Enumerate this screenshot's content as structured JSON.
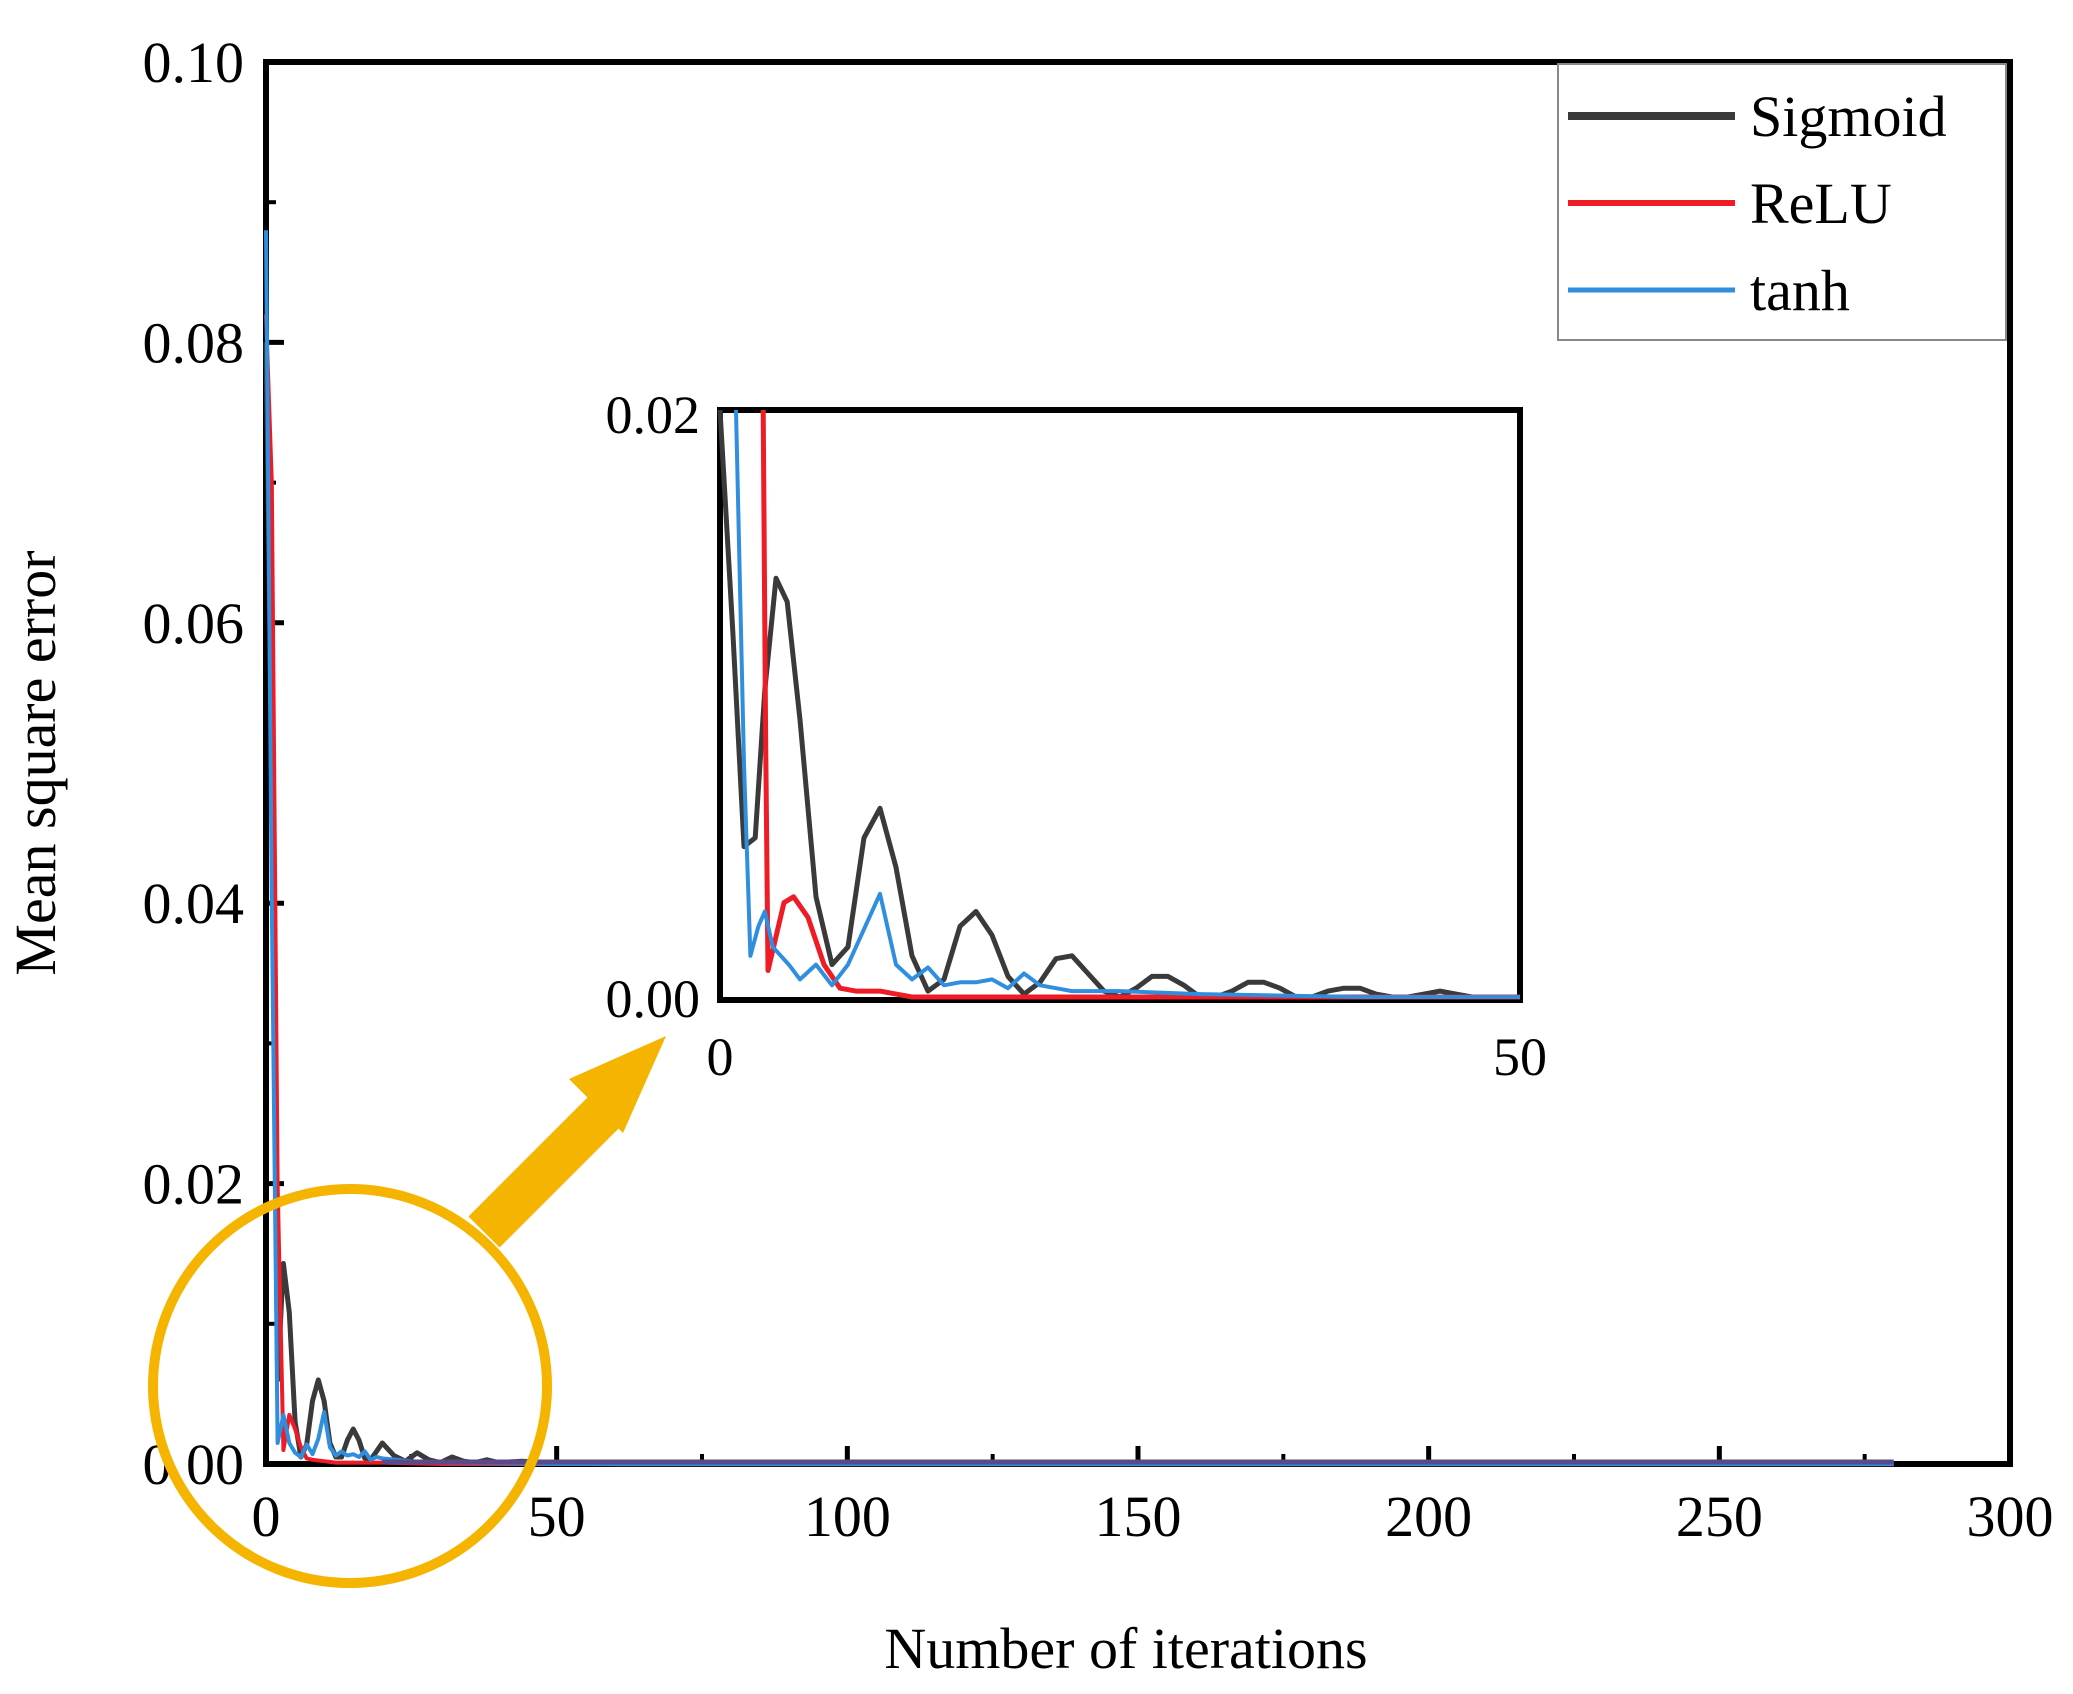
{
  "chart_data": [
    {
      "type": "line",
      "title": "",
      "xlabel": "Number of iterations",
      "ylabel": "Mean square error",
      "xlim": [
        0,
        300
      ],
      "ylim": [
        0,
        0.1
      ],
      "xticks": [
        "0",
        "50",
        "100",
        "150",
        "200",
        "250",
        "300"
      ],
      "yticks": [
        "0.00",
        "0.02",
        "0.04",
        "0.06",
        "0.08",
        "0.10"
      ],
      "legend": {
        "placement": "top-right",
        "entries": [
          "Sigmoid",
          "ReLU",
          "tanh"
        ]
      },
      "series": [
        {
          "name": "Sigmoid",
          "color": "#3a3a3a",
          "x": [
            0,
            1,
            2,
            3,
            4,
            5,
            6,
            7,
            8,
            9,
            10,
            11,
            12,
            13,
            14,
            15,
            16,
            17,
            18,
            19,
            20,
            22,
            24,
            26,
            28,
            30,
            32,
            34,
            36,
            38,
            40,
            44,
            48,
            60,
            100,
            150,
            200,
            250,
            280
          ],
          "y": [
            0.08,
            0.05,
            0.006,
            0.0143,
            0.0108,
            0.003,
            0.0005,
            0.0014,
            0.0045,
            0.006,
            0.0045,
            0.0015,
            0.0005,
            0.0005,
            0.0017,
            0.0025,
            0.0017,
            0.0004,
            0.0003,
            0.0009,
            0.0015,
            0.0006,
            0.0002,
            0.0008,
            0.0003,
            0.0001,
            0.0005,
            0.0002,
            0.0001,
            0.0003,
            0.0001,
            0.0002,
            0.0001,
            0.0,
            0.0,
            0.0,
            0.0,
            0.0,
            0.0
          ]
        },
        {
          "name": "ReLU",
          "color": "#ee1c25",
          "x": [
            0,
            1,
            2,
            3,
            4,
            5,
            6,
            7,
            8,
            10,
            12,
            15,
            20,
            30,
            50,
            100,
            150,
            200,
            250,
            280
          ],
          "y": [
            0.082,
            0.07,
            0.02,
            0.001,
            0.0035,
            0.0025,
            0.0012,
            0.0004,
            0.0003,
            0.0002,
            0.0001,
            0.0001,
            0.0001,
            0.0,
            0.0,
            0.0,
            0.0,
            0.0,
            0.0,
            0.0
          ]
        },
        {
          "name": "tanh",
          "color": "#2f8fde",
          "x": [
            0,
            1,
            2,
            3,
            4,
            5,
            6,
            7,
            8,
            9,
            10,
            11,
            12,
            13,
            14,
            15,
            16,
            17,
            18,
            19,
            20,
            25,
            30,
            50,
            100,
            150,
            200,
            250,
            280
          ],
          "y": [
            0.088,
            0.04,
            0.0015,
            0.0035,
            0.0015,
            0.0008,
            0.0005,
            0.0014,
            0.0007,
            0.0018,
            0.0037,
            0.0012,
            0.0006,
            0.0009,
            0.0006,
            0.0007,
            0.0005,
            0.0009,
            0.0003,
            0.0005,
            0.0004,
            0.0002,
            0.0001,
            0.0,
            0.0,
            0.0,
            0.0,
            0.0,
            0.0
          ]
        }
      ]
    },
    {
      "type": "line",
      "title": "",
      "xlabel": "",
      "ylabel": "",
      "xlim": [
        0,
        50
      ],
      "ylim": [
        0,
        0.02
      ],
      "xticks": [
        "0",
        "50"
      ],
      "yticks": [
        "0.00",
        "0.02"
      ],
      "series": [
        {
          "name": "Sigmoid",
          "color": "#3a3a3a",
          "x": [
            0,
            0.8,
            1.5,
            2.2,
            2.8,
            3.5,
            4.2,
            5,
            6,
            7,
            8,
            9,
            10,
            11,
            12,
            13,
            14,
            15,
            16,
            17,
            18,
            19,
            20,
            21,
            22,
            23,
            24,
            25,
            26,
            27,
            28,
            29,
            30,
            31,
            32,
            33,
            34,
            35,
            36,
            37,
            38,
            39,
            40,
            41,
            42,
            43,
            44,
            45,
            46,
            47,
            48,
            49,
            50
          ],
          "y": [
            0.02,
            0.0125,
            0.0052,
            0.0055,
            0.0105,
            0.0143,
            0.0135,
            0.0095,
            0.0035,
            0.0012,
            0.0018,
            0.0055,
            0.0065,
            0.0045,
            0.0015,
            0.0003,
            0.0007,
            0.0025,
            0.003,
            0.0022,
            0.0008,
            0.0002,
            0.0006,
            0.0014,
            0.0015,
            0.0009,
            0.0003,
            0.0001,
            0.0004,
            0.0008,
            0.0008,
            0.0005,
            0.0001,
            0.0001,
            0.0003,
            0.0006,
            0.0006,
            0.0004,
            0.0001,
            0.0001,
            0.0003,
            0.0004,
            0.0004,
            0.0002,
            0.0001,
            0.0001,
            0.0002,
            0.0003,
            0.0002,
            0.0001,
            0.0001,
            0.0001,
            0.0001
          ]
        },
        {
          "name": "ReLU",
          "color": "#ee1c25",
          "x": [
            2.7,
            2.85,
            3.0,
            4.0,
            4.6,
            5.5,
            6.5,
            7.5,
            8.5,
            10,
            12,
            15,
            20,
            30,
            40,
            50
          ],
          "y": [
            0.02,
            0.009,
            0.001,
            0.0033,
            0.0035,
            0.0028,
            0.0012,
            0.0004,
            0.0003,
            0.0003,
            0.0001,
            0.0001,
            0.0001,
            0.0001,
            0.0001,
            0.0001
          ]
        },
        {
          "name": "tanh",
          "color": "#2f8fde",
          "x": [
            1.0,
            1.5,
            1.9,
            2.4,
            2.8,
            3.3,
            3.8,
            4.3,
            5,
            6,
            7,
            8,
            9,
            10,
            11,
            12,
            13,
            14,
            15,
            16,
            17,
            18,
            19,
            20,
            21,
            22,
            25,
            30,
            40,
            50
          ],
          "y": [
            0.02,
            0.008,
            0.0015,
            0.0025,
            0.003,
            0.0018,
            0.0015,
            0.0012,
            0.0007,
            0.0012,
            0.0005,
            0.0012,
            0.0024,
            0.0036,
            0.0012,
            0.0007,
            0.0011,
            0.0005,
            0.0006,
            0.0006,
            0.0007,
            0.0004,
            0.0009,
            0.0005,
            0.0004,
            0.0003,
            0.0003,
            0.0002,
            0.0001,
            0.0001
          ]
        }
      ]
    }
  ],
  "colors": {
    "highlight": "#f5b400",
    "axis": "#000000"
  }
}
